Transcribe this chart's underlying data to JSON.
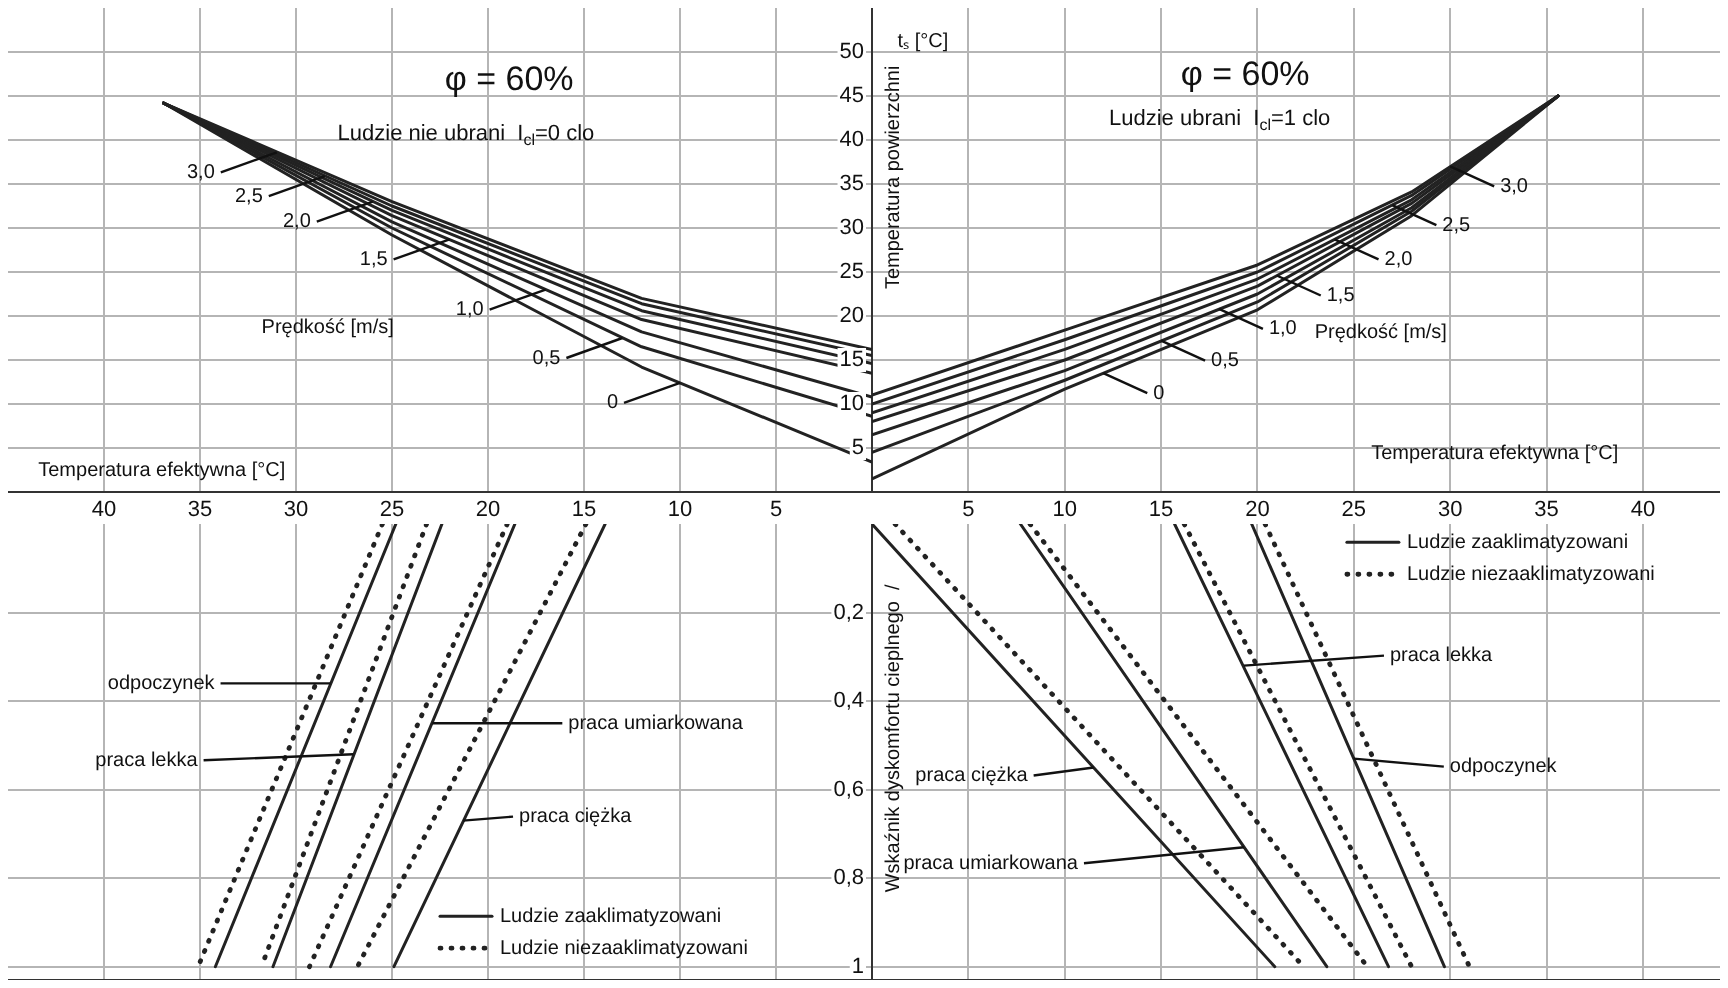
{
  "chart_data": [
    {
      "type": "line",
      "title": "φ = 60%",
      "subtitle": "Ludzie nie ubrani  I$_{cl}$=0 clo",
      "xlabel": "Temperatura efektywna [°C]",
      "xlim": [
        45,
        0
      ],
      "xticks": [
        40,
        35,
        30,
        25,
        20,
        15,
        10,
        5
      ],
      "ylim": [
        0,
        55
      ],
      "yticks": [
        5,
        10,
        15,
        20,
        25,
        30,
        35,
        40,
        45,
        50
      ],
      "grid": true,
      "marker": "none",
      "x": [
        36.9,
        25,
        12,
        0
      ],
      "series": [
        {
          "color": "#222222",
          "values": [
            44.2,
            33.0,
            22.0,
            16.2
          ]
        },
        {
          "color": "#222222",
          "values": [
            44.2,
            32.5,
            21.4,
            15.5
          ]
        },
        {
          "color": "#222222",
          "values": [
            44.2,
            32.0,
            20.6,
            14.6
          ]
        },
        {
          "color": "#222222",
          "values": [
            44.2,
            31.4,
            19.6,
            13.5
          ]
        },
        {
          "color": "#222222",
          "values": [
            44.2,
            30.7,
            18.2,
            10.8
          ]
        },
        {
          "color": "#222222",
          "values": [
            44.2,
            30.0,
            16.5,
            8.6
          ]
        },
        {
          "color": "#222222",
          "values": [
            44.2,
            29.2,
            14.2,
            3.4
          ]
        }
      ],
      "annotations": [
        {
          "text": "3,0",
          "x": 31,
          "y": 38.6
        },
        {
          "text": "2,5",
          "x": 28.5,
          "y": 35.9
        },
        {
          "text": "2,0",
          "x": 26,
          "y": 33.0
        },
        {
          "text": "1,5",
          "x": 22,
          "y": 28.7
        },
        {
          "text": "1,0",
          "x": 17,
          "y": 23.0
        },
        {
          "text": "0,5",
          "x": 13,
          "y": 17.5
        },
        {
          "text": "0",
          "x": 10,
          "y": 12.4
        },
        "Prędkość [m/s]"
      ]
    },
    {
      "type": "line",
      "title": "φ = 60%",
      "subtitle": "Ludzie ubrani  I$_{cl}$=1 clo",
      "xlabel": "Temperatura efektywna [°C]",
      "ylabel": "Temperatura powierzchni",
      "xlim": [
        0,
        44
      ],
      "xticks": [
        5,
        10,
        15,
        20,
        25,
        30,
        35,
        40
      ],
      "ylim": [
        0,
        55
      ],
      "yticks": [
        5,
        10,
        15,
        20,
        25,
        30,
        35,
        40,
        45,
        50
      ],
      "tick_labels": "x",
      "grid": true,
      "marker": "none",
      "x": [
        0,
        10,
        20,
        28,
        35.6
      ],
      "series": [
        {
          "color": "#222222",
          "values": [
            11,
            18.4,
            25.8,
            34.1,
            45
          ]
        },
        {
          "color": "#222222",
          "values": [
            10,
            17.3,
            25.0,
            33.7,
            45
          ]
        },
        {
          "color": "#222222",
          "values": [
            9,
            16.2,
            24.2,
            33.2,
            45
          ]
        },
        {
          "color": "#222222",
          "values": [
            8,
            15.0,
            23.4,
            32.8,
            45
          ]
        },
        {
          "color": "#222222",
          "values": [
            6.5,
            13.8,
            22.5,
            32.3,
            45
          ]
        },
        {
          "color": "#222222",
          "values": [
            4.5,
            12.7,
            21.6,
            31.9,
            45
          ]
        },
        {
          "color": "#222222",
          "values": [
            1.5,
            11.7,
            20.7,
            31.4,
            45
          ]
        }
      ],
      "annotations": [
        {
          "text": "3,0",
          "x": 30,
          "y": 37.0
        },
        {
          "text": "2,5",
          "x": 27,
          "y": 32.6
        },
        {
          "text": "2,0",
          "x": 24,
          "y": 28.7
        },
        {
          "text": "1,5",
          "x": 21,
          "y": 24.6
        },
        {
          "text": "1,0",
          "x": 18,
          "y": 20.8
        },
        {
          "text": "0,5",
          "x": 15,
          "y": 17.2
        },
        {
          "text": "0",
          "x": 12,
          "y": 13.5
        },
        "tₛ [°C]",
        "Prędkość [m/s]"
      ]
    },
    {
      "type": "line",
      "xlim": [
        45,
        0
      ],
      "xticks": [
        40,
        35,
        30,
        25,
        20,
        15,
        10,
        5
      ],
      "ylim": [
        1.03,
        0
      ],
      "yticks": [
        {
          "value": 0.2,
          "label": "0,2"
        },
        {
          "value": 0.4,
          "label": "0,4"
        },
        {
          "value": 0.6,
          "label": "0,6"
        },
        {
          "value": 0.8,
          "label": "0,8"
        },
        1
      ],
      "tick_labels": "y",
      "grid": true,
      "marker": "none",
      "legend": "bottom",
      "series": [
        {
          "name": "Ludzie zaaklimatyzowani",
          "color": "#222222",
          "line_style": "solid",
          "x": [
            24.8,
            34.2
          ],
          "values": [
            0,
            1
          ]
        },
        {
          "name": "Ludzie niezaaklimatyzowani",
          "color": "#222222",
          "line_style": "dotted",
          "x": [
            25.5,
            35.1
          ],
          "values": [
            0,
            1
          ]
        },
        {
          "color": "#222222",
          "line_style": "solid",
          "x": [
            22.4,
            31.2
          ],
          "values": [
            0,
            1
          ]
        },
        {
          "color": "#222222",
          "line_style": "dotted",
          "x": [
            23.2,
            31.8
          ],
          "values": [
            0,
            1
          ]
        },
        {
          "color": "#222222",
          "line_style": "solid",
          "x": [
            18.6,
            28.2
          ],
          "values": [
            0,
            1
          ]
        },
        {
          "color": "#222222",
          "line_style": "dotted",
          "x": [
            19.0,
            29.3
          ],
          "values": [
            0,
            1
          ]
        },
        {
          "color": "#222222",
          "line_style": "solid",
          "x": [
            13.9,
            24.9
          ],
          "values": [
            0,
            1
          ]
        },
        {
          "color": "#222222",
          "line_style": "dotted",
          "x": [
            14.9,
            26.8
          ],
          "values": [
            0,
            1
          ]
        }
      ],
      "annotations": [
        {
          "text": "odpoczynek",
          "x": 28.2,
          "y": 0.36
        },
        {
          "text": "praca lekka",
          "x": 27.0,
          "y": 0.52
        },
        {
          "text": "praca umiarkowana",
          "x": 22.9,
          "y": 0.45
        },
        {
          "text": "praca ciężka",
          "x": 21.3,
          "y": 0.67
        }
      ]
    },
    {
      "type": "line",
      "ylabel": "Wskaźnik dyskomfortu cieplnego  /",
      "xlim": [
        0,
        44
      ],
      "xticks": [
        5,
        10,
        15,
        20,
        25,
        30,
        35,
        40
      ],
      "ylim": [
        1.03,
        0
      ],
      "yticks": [
        0.2,
        0.4,
        0.6,
        0.8,
        1
      ],
      "tick_labels": false,
      "grid": true,
      "marker": "none",
      "legend": "top right",
      "series": [
        {
          "name": "Ludzie zaaklimatyzowani",
          "color": "#222222",
          "line_style": "solid",
          "x": [
            0,
            20.9
          ],
          "values": [
            0,
            1
          ]
        },
        {
          "name": "Ludzie niezaaklimatyzowani",
          "color": "#222222",
          "line_style": "dotted",
          "x": [
            1.2,
            22.4
          ],
          "values": [
            0,
            1
          ]
        },
        {
          "color": "#222222",
          "line_style": "solid",
          "x": [
            7.7,
            23.6
          ],
          "values": [
            0,
            1
          ]
        },
        {
          "color": "#222222",
          "line_style": "dotted",
          "x": [
            8.2,
            25.7
          ],
          "values": [
            0,
            1
          ]
        },
        {
          "color": "#222222",
          "line_style": "solid",
          "x": [
            15.7,
            26.8
          ],
          "values": [
            0,
            1
          ]
        },
        {
          "color": "#222222",
          "line_style": "dotted",
          "x": [
            16.2,
            28.0
          ],
          "values": [
            0,
            1
          ]
        },
        {
          "color": "#222222",
          "line_style": "solid",
          "x": [
            19.7,
            29.7
          ],
          "values": [
            0,
            1
          ]
        },
        {
          "color": "#222222",
          "line_style": "dotted",
          "x": [
            20.4,
            31.0
          ],
          "values": [
            0,
            1
          ]
        }
      ],
      "annotations": [
        {
          "text": "praca ciężka",
          "x": 11.5,
          "y": 0.55
        },
        {
          "text": "praca umiarkowana",
          "x": 19.3,
          "y": 0.73
        },
        {
          "text": "praca lekka",
          "x": 19.3,
          "y": 0.32
        },
        {
          "text": "odpoczynek",
          "x": 25.0,
          "y": 0.53
        }
      ]
    }
  ]
}
